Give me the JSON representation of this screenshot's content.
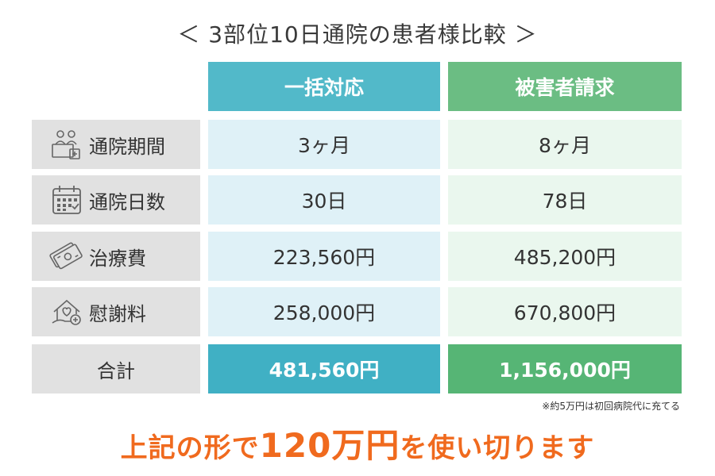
{
  "title": "＜ 3部位10日通院の患者様比較 ＞",
  "columns": {
    "a": "一括対応",
    "b": "被害者請求"
  },
  "rows": [
    {
      "label": "通院期間",
      "icon": "reception-desk-icon",
      "a": "3ヶ月",
      "b": "8ヶ月"
    },
    {
      "label": "通院日数",
      "icon": "calendar-icon",
      "a": "30日",
      "b": "78日"
    },
    {
      "label": "治療費",
      "icon": "money-bills-icon",
      "a": "223,560円",
      "b": "485,200円"
    },
    {
      "label": "慰謝料",
      "icon": "house-heart-icon",
      "a": "258,000円",
      "b": "670,800円"
    }
  ],
  "total": {
    "label": "合計",
    "a": "481,560円",
    "b": "1,156,000円"
  },
  "note": "※約5万円は初回病院代に充てる",
  "conclusion": {
    "before": "上記の形で",
    "amount": "120万円",
    "after": "を使い切ります"
  },
  "colors": {
    "header_a": "#52b9c9",
    "header_b": "#6bbd83",
    "total_a": "#40b0c4",
    "total_b": "#56b575",
    "accent": "#f06a1e"
  }
}
